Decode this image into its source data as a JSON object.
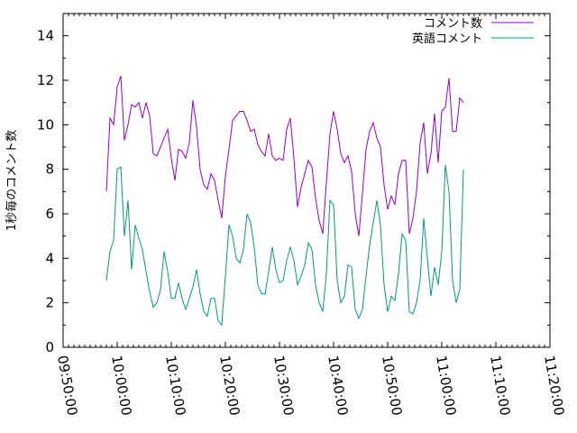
{
  "chart_data": {
    "type": "line",
    "title": "",
    "xlabel": "",
    "ylabel": "1秒毎のコメント数",
    "xlim": [
      "09:50:00",
      "11:20:00"
    ],
    "ylim": [
      0,
      15
    ],
    "x_ticks": [
      "09:50:00",
      "10:00:00",
      "10:10:00",
      "10:20:00",
      "10:30:00",
      "10:40:00",
      "10:50:00",
      "11:00:00",
      "11:10:00",
      "11:20:00"
    ],
    "y_ticks": [
      0,
      2,
      4,
      6,
      8,
      10,
      12,
      14
    ],
    "legend": "top-right",
    "grid": false,
    "series": [
      {
        "name": "コメント数",
        "color": "#9400d3",
        "points": [
          [
            "09:58:00",
            7.0
          ],
          [
            "09:58:40",
            10.3
          ],
          [
            "09:59:20",
            10.0
          ],
          [
            "10:00:00",
            11.7
          ],
          [
            "10:00:40",
            12.2
          ],
          [
            "10:01:20",
            9.3
          ],
          [
            "10:02:00",
            10.0
          ],
          [
            "10:02:40",
            10.9
          ],
          [
            "10:03:20",
            10.8
          ],
          [
            "10:04:00",
            11.0
          ],
          [
            "10:04:40",
            10.3
          ],
          [
            "10:05:20",
            11.0
          ],
          [
            "10:06:00",
            10.4
          ],
          [
            "10:06:40",
            8.7
          ],
          [
            "10:07:20",
            8.6
          ],
          [
            "10:08:00",
            9.0
          ],
          [
            "10:08:40",
            9.4
          ],
          [
            "10:09:20",
            9.8
          ],
          [
            "10:10:00",
            8.5
          ],
          [
            "10:10:40",
            7.5
          ],
          [
            "10:11:20",
            8.9
          ],
          [
            "10:12:00",
            8.8
          ],
          [
            "10:12:40",
            8.5
          ],
          [
            "10:13:20",
            9.2
          ],
          [
            "10:14:00",
            11.1
          ],
          [
            "10:14:40",
            9.9
          ],
          [
            "10:15:20",
            8.0
          ],
          [
            "10:16:00",
            7.3
          ],
          [
            "10:16:40",
            7.1
          ],
          [
            "10:17:20",
            7.8
          ],
          [
            "10:18:00",
            7.5
          ],
          [
            "10:18:40",
            6.6
          ],
          [
            "10:19:20",
            5.8
          ],
          [
            "10:20:00",
            7.7
          ],
          [
            "10:20:40",
            8.9
          ],
          [
            "10:21:20",
            10.2
          ],
          [
            "10:22:00",
            10.4
          ],
          [
            "10:22:40",
            10.6
          ],
          [
            "10:23:20",
            10.6
          ],
          [
            "10:24:00",
            10.2
          ],
          [
            "10:24:40",
            9.7
          ],
          [
            "10:25:20",
            9.8
          ],
          [
            "10:26:00",
            9.1
          ],
          [
            "10:26:40",
            8.8
          ],
          [
            "10:27:20",
            8.6
          ],
          [
            "10:28:00",
            9.6
          ],
          [
            "10:28:40",
            8.6
          ],
          [
            "10:29:20",
            8.4
          ],
          [
            "10:30:00",
            8.5
          ],
          [
            "10:30:40",
            8.4
          ],
          [
            "10:31:20",
            9.8
          ],
          [
            "10:32:00",
            10.3
          ],
          [
            "10:32:40",
            8.5
          ],
          [
            "10:33:20",
            6.3
          ],
          [
            "10:34:00",
            7.2
          ],
          [
            "10:34:40",
            7.8
          ],
          [
            "10:35:20",
            8.4
          ],
          [
            "10:36:00",
            8.1
          ],
          [
            "10:36:40",
            6.7
          ],
          [
            "10:37:20",
            5.7
          ],
          [
            "10:38:00",
            5.1
          ],
          [
            "10:38:40",
            7.4
          ],
          [
            "10:39:20",
            9.6
          ],
          [
            "10:40:00",
            10.6
          ],
          [
            "10:40:40",
            9.8
          ],
          [
            "10:41:20",
            8.7
          ],
          [
            "10:42:00",
            8.3
          ],
          [
            "10:42:40",
            8.6
          ],
          [
            "10:43:20",
            7.9
          ],
          [
            "10:44:00",
            6.0
          ],
          [
            "10:44:40",
            5.0
          ],
          [
            "10:45:20",
            6.9
          ],
          [
            "10:46:00",
            8.9
          ],
          [
            "10:46:40",
            9.7
          ],
          [
            "10:47:20",
            10.1
          ],
          [
            "10:48:00",
            9.4
          ],
          [
            "10:48:40",
            9.0
          ],
          [
            "10:49:20",
            7.3
          ],
          [
            "10:50:00",
            6.2
          ],
          [
            "10:50:40",
            6.8
          ],
          [
            "10:51:20",
            6.4
          ],
          [
            "10:52:00",
            7.8
          ],
          [
            "10:52:40",
            8.4
          ],
          [
            "10:53:20",
            8.4
          ],
          [
            "10:54:00",
            5.1
          ],
          [
            "10:54:40",
            5.8
          ],
          [
            "10:55:20",
            7.0
          ],
          [
            "10:56:00",
            9.2
          ],
          [
            "10:56:40",
            10.1
          ],
          [
            "10:57:20",
            7.8
          ],
          [
            "10:58:00",
            8.7
          ],
          [
            "10:58:40",
            10.5
          ],
          [
            "10:59:20",
            8.3
          ],
          [
            "11:00:00",
            10.6
          ],
          [
            "11:00:40",
            10.8
          ],
          [
            "11:01:20",
            12.1
          ],
          [
            "11:02:00",
            9.7
          ],
          [
            "11:02:40",
            9.7
          ],
          [
            "11:03:20",
            11.2
          ],
          [
            "11:04:00",
            11.0
          ]
        ]
      },
      {
        "name": "英語コメント",
        "color": "#009e73",
        "points": [
          [
            "09:58:00",
            3.0
          ],
          [
            "09:58:40",
            4.3
          ],
          [
            "09:59:20",
            4.8
          ],
          [
            "10:00:00",
            8.0
          ],
          [
            "10:00:40",
            8.1
          ],
          [
            "10:01:20",
            5.0
          ],
          [
            "10:02:00",
            6.6
          ],
          [
            "10:02:40",
            3.5
          ],
          [
            "10:03:20",
            5.5
          ],
          [
            "10:04:00",
            4.9
          ],
          [
            "10:04:40",
            4.4
          ],
          [
            "10:05:20",
            3.4
          ],
          [
            "10:06:00",
            2.5
          ],
          [
            "10:06:40",
            1.8
          ],
          [
            "10:07:20",
            2.0
          ],
          [
            "10:08:00",
            2.6
          ],
          [
            "10:08:40",
            4.3
          ],
          [
            "10:09:20",
            3.4
          ],
          [
            "10:10:00",
            2.2
          ],
          [
            "10:10:40",
            2.2
          ],
          [
            "10:11:20",
            2.9
          ],
          [
            "10:12:00",
            2.2
          ],
          [
            "10:12:40",
            1.7
          ],
          [
            "10:13:20",
            2.2
          ],
          [
            "10:14:00",
            2.7
          ],
          [
            "10:14:40",
            3.5
          ],
          [
            "10:15:20",
            2.4
          ],
          [
            "10:16:00",
            1.6
          ],
          [
            "10:16:40",
            1.4
          ],
          [
            "10:17:20",
            2.2
          ],
          [
            "10:18:00",
            2.2
          ],
          [
            "10:18:40",
            1.2
          ],
          [
            "10:19:20",
            1.0
          ],
          [
            "10:20:00",
            3.2
          ],
          [
            "10:20:40",
            5.5
          ],
          [
            "10:21:20",
            5.0
          ],
          [
            "10:22:00",
            4.0
          ],
          [
            "10:22:40",
            3.8
          ],
          [
            "10:23:20",
            4.4
          ],
          [
            "10:24:00",
            6.0
          ],
          [
            "10:24:40",
            5.6
          ],
          [
            "10:25:20",
            4.5
          ],
          [
            "10:26:00",
            2.8
          ],
          [
            "10:26:40",
            2.4
          ],
          [
            "10:27:20",
            2.4
          ],
          [
            "10:28:00",
            3.4
          ],
          [
            "10:28:40",
            4.5
          ],
          [
            "10:29:20",
            3.5
          ],
          [
            "10:30:00",
            2.9
          ],
          [
            "10:30:40",
            3.0
          ],
          [
            "10:31:20",
            3.9
          ],
          [
            "10:32:00",
            4.5
          ],
          [
            "10:32:40",
            3.9
          ],
          [
            "10:33:20",
            2.8
          ],
          [
            "10:34:00",
            3.2
          ],
          [
            "10:34:40",
            3.7
          ],
          [
            "10:35:20",
            4.7
          ],
          [
            "10:36:00",
            4.4
          ],
          [
            "10:36:40",
            2.8
          ],
          [
            "10:37:20",
            2.0
          ],
          [
            "10:38:00",
            1.6
          ],
          [
            "10:38:40",
            3.3
          ],
          [
            "10:39:20",
            6.6
          ],
          [
            "10:40:00",
            6.4
          ],
          [
            "10:40:40",
            3.0
          ],
          [
            "10:41:20",
            2.0
          ],
          [
            "10:42:00",
            2.3
          ],
          [
            "10:42:40",
            3.7
          ],
          [
            "10:43:20",
            3.6
          ],
          [
            "10:44:00",
            1.7
          ],
          [
            "10:44:40",
            1.3
          ],
          [
            "10:45:20",
            1.7
          ],
          [
            "10:46:00",
            3.2
          ],
          [
            "10:46:40",
            4.6
          ],
          [
            "10:47:20",
            5.6
          ],
          [
            "10:48:00",
            6.6
          ],
          [
            "10:48:40",
            5.5
          ],
          [
            "10:49:20",
            2.8
          ],
          [
            "10:50:00",
            1.6
          ],
          [
            "10:50:40",
            2.3
          ],
          [
            "10:51:20",
            2.1
          ],
          [
            "10:52:00",
            3.3
          ],
          [
            "10:52:40",
            5.1
          ],
          [
            "10:53:20",
            4.8
          ],
          [
            "10:54:00",
            1.6
          ],
          [
            "10:54:40",
            1.5
          ],
          [
            "10:55:20",
            2.0
          ],
          [
            "10:56:00",
            3.0
          ],
          [
            "10:56:40",
            5.8
          ],
          [
            "10:57:20",
            4.0
          ],
          [
            "10:58:00",
            2.3
          ],
          [
            "10:58:40",
            3.6
          ],
          [
            "10:59:20",
            2.8
          ],
          [
            "11:00:00",
            4.3
          ],
          [
            "11:00:40",
            8.2
          ],
          [
            "11:01:20",
            7.0
          ],
          [
            "11:02:00",
            3.0
          ],
          [
            "11:02:40",
            2.0
          ],
          [
            "11:03:20",
            2.6
          ],
          [
            "11:04:00",
            8.0
          ]
        ]
      }
    ]
  }
}
